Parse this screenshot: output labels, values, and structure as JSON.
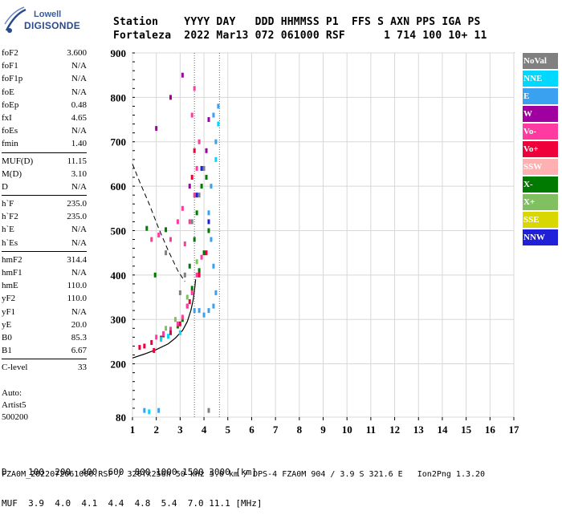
{
  "logo": {
    "line1": "Lowell",
    "line2": "DIGISONDE"
  },
  "header": {
    "row1": "Station    YYYY DAY   DDD HHMMSS P1  FFS S AXN PPS IGA PS",
    "row2": "Fortaleza  2022 Mar13 072 061000 RSF      1 714 100 10+ 11"
  },
  "params": {
    "group1": [
      {
        "label": "foF2",
        "value": "3.600"
      },
      {
        "label": "foF1",
        "value": "N/A"
      },
      {
        "label": "foF1p",
        "value": "N/A"
      },
      {
        "label": "foE",
        "value": "N/A"
      },
      {
        "label": "foEp",
        "value": "0.48"
      },
      {
        "label": "fxI",
        "value": "4.65"
      },
      {
        "label": "foEs",
        "value": "N/A"
      },
      {
        "label": "fmin",
        "value": "1.40"
      }
    ],
    "group2": [
      {
        "label": "MUF(D)",
        "value": "11.15"
      },
      {
        "label": "M(D)",
        "value": "3.10"
      },
      {
        "label": "D",
        "value": "N/A"
      }
    ],
    "group3": [
      {
        "label": "h`F",
        "value": "235.0"
      },
      {
        "label": "h`F2",
        "value": "235.0"
      },
      {
        "label": "h`E",
        "value": "N/A"
      },
      {
        "label": "h`Es",
        "value": "N/A"
      }
    ],
    "group4": [
      {
        "label": "hmF2",
        "value": "314.4"
      },
      {
        "label": "hmF1",
        "value": "N/A"
      },
      {
        "label": "hmE",
        "value": "110.0"
      },
      {
        "label": "yF2",
        "value": "110.0"
      },
      {
        "label": "yF1",
        "value": "N/A"
      },
      {
        "label": "yE",
        "value": "20.0"
      },
      {
        "label": "B0",
        "value": "85.3"
      },
      {
        "label": "B1",
        "value": "6.67"
      }
    ],
    "group5": [
      {
        "label": "C-level",
        "value": "33"
      }
    ]
  },
  "autoscaling": {
    "line1": "Auto:",
    "line2": "Artist5",
    "line3": "500200"
  },
  "legend": [
    {
      "label": "NoVal",
      "color": "#808080"
    },
    {
      "label": "NNE",
      "color": "#00d8ff"
    },
    {
      "label": "E",
      "color": "#3aa0f0"
    },
    {
      "label": "W",
      "color": "#a000a0"
    },
    {
      "label": "Vo-",
      "color": "#ff3aa0"
    },
    {
      "label": "Vo+",
      "color": "#f0003a"
    },
    {
      "label": "SSW",
      "color": "#ffb0b0"
    },
    {
      "label": "X-",
      "color": "#007a00"
    },
    {
      "label": "X+",
      "color": "#80c060"
    },
    {
      "label": "SSE",
      "color": "#d8d800"
    },
    {
      "label": "NNW",
      "color": "#2020d8"
    }
  ],
  "bottom": {
    "d_row": "D    100  200  400  600  800 1000 1500 3000 [km]",
    "muf_row": "MUF  3.9  4.0  4.1  4.4  4.8  5.4  7.0 11.1 [MHz]"
  },
  "footer": "FZA0M_2022072061000.RSF / 320fx256h 50 kHz 5.0 km / DPS-4 FZA0M 904 / 3.9 S 321.6 E   Ion2Png 1.3.20",
  "chart_data": {
    "type": "scatter",
    "xlabel": "",
    "ylabel": "",
    "xlim": [
      1,
      17
    ],
    "ylim": [
      80,
      900
    ],
    "xticks": [
      1,
      2,
      3,
      4,
      5,
      6,
      7,
      8,
      9,
      10,
      11,
      12,
      13,
      14,
      15,
      16,
      17
    ],
    "yticks": [
      80,
      200,
      300,
      400,
      500,
      600,
      700,
      800,
      900
    ],
    "grid": true,
    "dotted_verticals": [
      3.6,
      4.65
    ],
    "series": [
      {
        "name": "X-",
        "color": "#007a00",
        "points": [
          [
            2.3,
            265
          ],
          [
            2.6,
            275
          ],
          [
            2.9,
            285
          ],
          [
            3.1,
            300
          ],
          [
            3.3,
            330
          ],
          [
            3.5,
            370
          ],
          [
            3.8,
            410
          ],
          [
            4.0,
            450
          ],
          [
            4.2,
            500
          ],
          [
            3.4,
            420
          ],
          [
            3.6,
            480
          ],
          [
            3.7,
            540
          ],
          [
            3.9,
            600
          ],
          [
            4.1,
            620
          ],
          [
            1.95,
            400
          ],
          [
            1.6,
            505
          ],
          [
            2.4,
            502
          ]
        ]
      },
      {
        "name": "Vo-",
        "color": "#ff3aa0",
        "points": [
          [
            2.0,
            260
          ],
          [
            2.3,
            268
          ],
          [
            2.6,
            278
          ],
          [
            2.9,
            290
          ],
          [
            3.1,
            305
          ],
          [
            3.3,
            330
          ],
          [
            3.5,
            360
          ],
          [
            3.7,
            400
          ],
          [
            3.9,
            440
          ],
          [
            3.2,
            470
          ],
          [
            3.4,
            520
          ],
          [
            3.6,
            580
          ],
          [
            3.7,
            640
          ],
          [
            3.8,
            700
          ],
          [
            2.6,
            480
          ],
          [
            2.9,
            520
          ],
          [
            3.1,
            550
          ],
          [
            3.5,
            760
          ],
          [
            3.6,
            820
          ],
          [
            1.8,
            480
          ],
          [
            2.1,
            490
          ]
        ]
      },
      {
        "name": "Vo+",
        "color": "#f0003a",
        "points": [
          [
            1.5,
            240
          ],
          [
            1.8,
            248
          ],
          [
            2.2,
            258
          ],
          [
            2.6,
            270
          ],
          [
            3.0,
            290
          ],
          [
            3.4,
            340
          ],
          [
            3.8,
            400
          ],
          [
            4.1,
            450
          ],
          [
            3.5,
            620
          ],
          [
            3.6,
            680
          ],
          [
            1.9,
            230
          ],
          [
            1.3,
            237
          ]
        ]
      },
      {
        "name": "W",
        "color": "#a000a0",
        "points": [
          [
            2.0,
            730
          ],
          [
            2.6,
            800
          ],
          [
            3.1,
            850
          ],
          [
            3.4,
            600
          ],
          [
            4.1,
            680
          ],
          [
            4.2,
            750
          ]
        ]
      },
      {
        "name": "E",
        "color": "#3aa0f0",
        "points": [
          [
            3.6,
            320
          ],
          [
            3.8,
            320
          ],
          [
            4.0,
            310
          ],
          [
            4.2,
            320
          ],
          [
            4.4,
            330
          ],
          [
            4.5,
            360
          ],
          [
            4.4,
            420
          ],
          [
            4.3,
            480
          ],
          [
            4.2,
            540
          ],
          [
            4.3,
            600
          ],
          [
            4.5,
            700
          ],
          [
            4.6,
            780
          ],
          [
            4.4,
            760
          ],
          [
            1.5,
            95
          ],
          [
            2.1,
            95
          ]
        ]
      },
      {
        "name": "NNE",
        "color": "#00d8ff",
        "points": [
          [
            2.2,
            255
          ],
          [
            2.5,
            262
          ],
          [
            3.0,
            270
          ],
          [
            4.5,
            660
          ],
          [
            4.6,
            740
          ],
          [
            1.7,
            92
          ]
        ]
      },
      {
        "name": "NoVal",
        "color": "#808080",
        "points": [
          [
            3.0,
            360
          ],
          [
            3.2,
            400
          ],
          [
            3.5,
            520
          ],
          [
            3.8,
            580
          ],
          [
            4.0,
            640
          ],
          [
            2.4,
            450
          ],
          [
            4.2,
            95
          ]
        ]
      },
      {
        "name": "X+",
        "color": "#80c060",
        "points": [
          [
            2.4,
            280
          ],
          [
            2.8,
            300
          ],
          [
            3.3,
            350
          ],
          [
            3.7,
            430
          ]
        ]
      },
      {
        "name": "NNW",
        "color": "#2020d8",
        "points": [
          [
            3.7,
            580
          ],
          [
            3.9,
            640
          ],
          [
            4.2,
            520
          ]
        ]
      }
    ],
    "profile_curve": [
      [
        1,
        213
      ],
      [
        1.5,
        222
      ],
      [
        2,
        232
      ],
      [
        2.5,
        245
      ],
      [
        2.8,
        258
      ],
      [
        3.1,
        275
      ],
      [
        3.3,
        295
      ],
      [
        3.45,
        320
      ],
      [
        3.55,
        345
      ],
      [
        3.6,
        365
      ],
      [
        3.65,
        390
      ]
    ],
    "dashed_curve": [
      [
        1,
        650
      ],
      [
        1.3,
        610
      ],
      [
        1.7,
        560
      ],
      [
        2.1,
        505
      ],
      [
        2.5,
        455
      ],
      [
        2.9,
        410
      ],
      [
        3.2,
        385
      ]
    ]
  }
}
